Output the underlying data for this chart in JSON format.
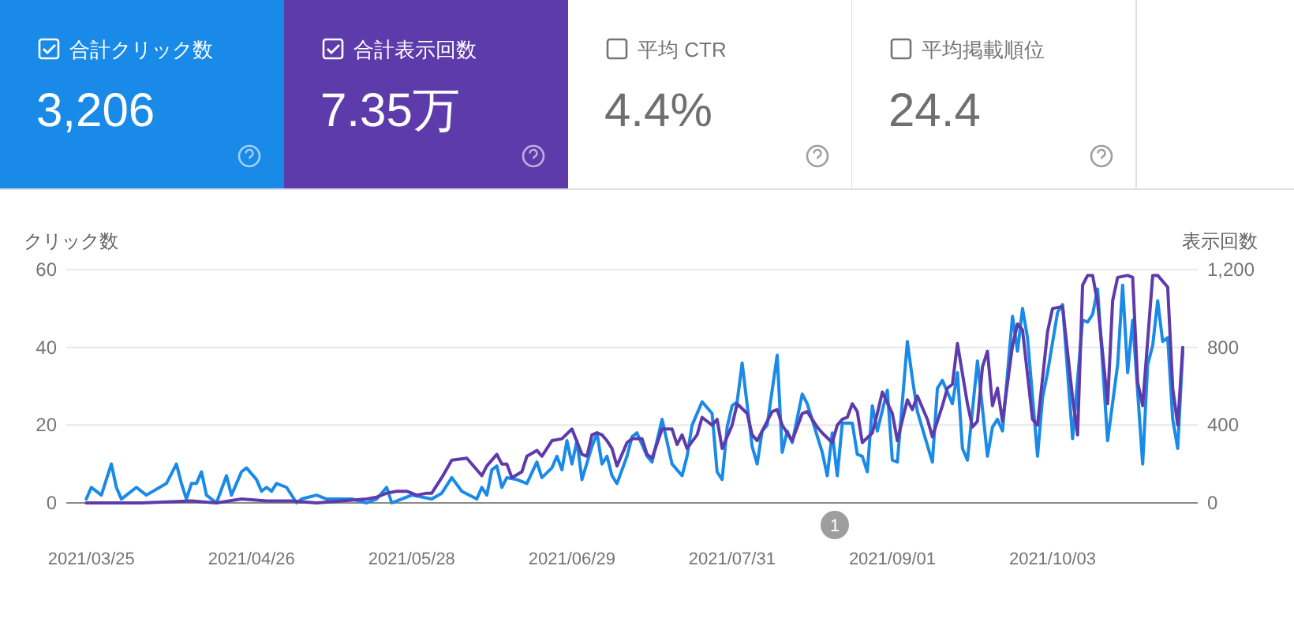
{
  "chart_data": [
    {
      "type": "other",
      "annotations": [
        "合計クリック数",
        "3,206",
        "合計表示回数",
        "7.35万",
        "平均 CTR",
        "4.4%",
        "平均掲載順位",
        "24.4"
      ],
      "colors": [
        "#1a8ae8",
        "#5e3bab",
        null,
        null
      ]
    },
    {
      "type": "line",
      "ylabel": "クリック数",
      "y2label": "表示回数",
      "xlim": [
        "2021-03-20",
        "2021-11-01"
      ],
      "xticks": [
        {
          "value": "2021-03-25",
          "label": "2021/03/25"
        },
        {
          "value": "2021-04-26",
          "label": "2021/04/26"
        },
        {
          "value": "2021-05-28",
          "label": "2021/05/28"
        },
        {
          "value": "2021-06-29",
          "label": "2021/06/29"
        },
        {
          "value": "2021-07-31",
          "label": "2021/07/31"
        },
        {
          "value": "2021-09-01",
          "label": "2021/09/01"
        },
        {
          "value": "2021-10-03",
          "label": "2021/10/03"
        }
      ],
      "ylim": [
        0,
        60
      ],
      "yticks": [
        0,
        20,
        40,
        60
      ],
      "y2lim": [
        0,
        1200
      ],
      "y2ticks": [
        0,
        400,
        800,
        {
          "value": 1200,
          "label": "1,200"
        }
      ],
      "grid": "y",
      "annotations": [
        "1"
      ],
      "series": [
        {
          "color": "#1a8ae8",
          "x": [
            "2021-03-24",
            "2021-03-25",
            "2021-03-27",
            "2021-03-29",
            "2021-03-30",
            "2021-03-31",
            "2021-04-03",
            "2021-04-05",
            "2021-04-09",
            "2021-04-11",
            "2021-04-12",
            "2021-04-13",
            "2021-04-14",
            "2021-04-15",
            "2021-04-16",
            "2021-04-17",
            "2021-04-19",
            "2021-04-21",
            "2021-04-22",
            "2021-04-24",
            "2021-04-25",
            "2021-04-27",
            "2021-04-28",
            "2021-04-29",
            "2021-04-30",
            "2021-05-01",
            "2021-05-03",
            "2021-05-05",
            "2021-05-06",
            "2021-05-09",
            "2021-05-11",
            "2021-05-16",
            "2021-05-19",
            "2021-05-21",
            "2021-05-23",
            "2021-05-24",
            "2021-05-28",
            "2021-06-01",
            "2021-06-03",
            "2021-06-05",
            "2021-06-07",
            "2021-06-10",
            "2021-06-11",
            "2021-06-12",
            "2021-06-13",
            "2021-06-14",
            "2021-06-15",
            "2021-06-16",
            "2021-06-18",
            "2021-06-20",
            "2021-06-22",
            "2021-06-23",
            "2021-06-25",
            "2021-06-26",
            "2021-06-27",
            "2021-06-28",
            "2021-06-29",
            "2021-06-30",
            "2021-07-01",
            "2021-07-03",
            "2021-07-04",
            "2021-07-05",
            "2021-07-06",
            "2021-07-07",
            "2021-07-08",
            "2021-07-10",
            "2021-07-11",
            "2021-07-12",
            "2021-07-14",
            "2021-07-15",
            "2021-07-17",
            "2021-07-19",
            "2021-07-21",
            "2021-07-22",
            "2021-07-23",
            "2021-07-25",
            "2021-07-27",
            "2021-07-28",
            "2021-07-29",
            "2021-07-30",
            "2021-07-31",
            "2021-08-01",
            "2021-08-02",
            "2021-08-04",
            "2021-08-05",
            "2021-08-06",
            "2021-08-07",
            "2021-08-09",
            "2021-08-10",
            "2021-08-11",
            "2021-08-12",
            "2021-08-14",
            "2021-08-15",
            "2021-08-18",
            "2021-08-19",
            "2021-08-20",
            "2021-08-21",
            "2021-08-22",
            "2021-08-24",
            "2021-08-25",
            "2021-08-26",
            "2021-08-27",
            "2021-08-28",
            "2021-08-29",
            "2021-08-31",
            "2021-09-01",
            "2021-09-02",
            "2021-09-04",
            "2021-09-05",
            "2021-09-06",
            "2021-09-09",
            "2021-09-10",
            "2021-09-11",
            "2021-09-13",
            "2021-09-14",
            "2021-09-15",
            "2021-09-16",
            "2021-09-18",
            "2021-09-20",
            "2021-09-21",
            "2021-09-22",
            "2021-09-23",
            "2021-09-25",
            "2021-09-26",
            "2021-09-27",
            "2021-09-28",
            "2021-09-30",
            "2021-10-01",
            "2021-10-02",
            "2021-10-04",
            "2021-10-05",
            "2021-10-07",
            "2021-10-09",
            "2021-10-10",
            "2021-10-11",
            "2021-10-12",
            "2021-10-14",
            "2021-10-16",
            "2021-10-17",
            "2021-10-18",
            "2021-10-19",
            "2021-10-21",
            "2021-10-22",
            "2021-10-23",
            "2021-10-24",
            "2021-10-25",
            "2021-10-26",
            "2021-10-27",
            "2021-10-28",
            "2021-10-29"
          ],
          "values": [
            1,
            4,
            2,
            10,
            4,
            1,
            4,
            2,
            5,
            10,
            5,
            1,
            5,
            5,
            8,
            2,
            0,
            7,
            2,
            8,
            9,
            6,
            3,
            4,
            3,
            5,
            4,
            0,
            1,
            2,
            1,
            1,
            0,
            1,
            4,
            0,
            2,
            1,
            2.5,
            6.5,
            3,
            1,
            4,
            2,
            8.5,
            9.5,
            4,
            6.5,
            6,
            5,
            10.5,
            6.5,
            9,
            12,
            8.5,
            16,
            10,
            16,
            6,
            14.5,
            18,
            10,
            12,
            7,
            5,
            12,
            17,
            18,
            12,
            10.5,
            21.5,
            10,
            7,
            12,
            20,
            26,
            23,
            8,
            6,
            19.5,
            25,
            26,
            36,
            14.5,
            10,
            18.5,
            20,
            38,
            13,
            18.5,
            15.5,
            28,
            25.5,
            13,
            7,
            18,
            7,
            20.5,
            20.5,
            12.5,
            12,
            8,
            25,
            18.5,
            29,
            11,
            10.5,
            41.5,
            32,
            23.5,
            10.5,
            29.5,
            31.5,
            25.5,
            33.5,
            14,
            11,
            36.5,
            12,
            19.5,
            21.5,
            18.5,
            48,
            39,
            50,
            42.5,
            12,
            27,
            33.5,
            49,
            51,
            16.5,
            47,
            46.5,
            48.5,
            55,
            16,
            35.5,
            56,
            33.5,
            47,
            10,
            35.5,
            40.5,
            52,
            41.5,
            42.5,
            21.5,
            14,
            39
          ]
        },
        {
          "color": "#5e3bab",
          "axis": "y2",
          "x": [
            "2021-03-24",
            "2021-03-29",
            "2021-04-04",
            "2021-04-14",
            "2021-04-19",
            "2021-04-24",
            "2021-04-29",
            "2021-05-04",
            "2021-05-09",
            "2021-05-14",
            "2021-05-19",
            "2021-05-21",
            "2021-05-23",
            "2021-05-25",
            "2021-05-27",
            "2021-05-29",
            "2021-05-31",
            "2021-06-01",
            "2021-06-03",
            "2021-06-05",
            "2021-06-08",
            "2021-06-10",
            "2021-06-11",
            "2021-06-12",
            "2021-06-14",
            "2021-06-15",
            "2021-06-16",
            "2021-06-17",
            "2021-06-19",
            "2021-06-20",
            "2021-06-22",
            "2021-06-23",
            "2021-06-25",
            "2021-06-27",
            "2021-06-29",
            "2021-07-01",
            "2021-07-02",
            "2021-07-03",
            "2021-07-04",
            "2021-07-05",
            "2021-07-06",
            "2021-07-07",
            "2021-07-08",
            "2021-07-10",
            "2021-07-11",
            "2021-07-13",
            "2021-07-14",
            "2021-07-15",
            "2021-07-17",
            "2021-07-19",
            "2021-07-20",
            "2021-07-21",
            "2021-07-22",
            "2021-07-24",
            "2021-07-25",
            "2021-07-27",
            "2021-07-28",
            "2021-07-29",
            "2021-07-31",
            "2021-08-01",
            "2021-08-03",
            "2021-08-04",
            "2021-08-05",
            "2021-08-07",
            "2021-08-08",
            "2021-08-09",
            "2021-08-10",
            "2021-08-12",
            "2021-08-14",
            "2021-08-15",
            "2021-08-17",
            "2021-08-18",
            "2021-08-20",
            "2021-08-21",
            "2021-08-22",
            "2021-08-23",
            "2021-08-24",
            "2021-08-25",
            "2021-08-26",
            "2021-08-28",
            "2021-08-29",
            "2021-08-30",
            "2021-09-01",
            "2021-09-02",
            "2021-09-04",
            "2021-09-05",
            "2021-09-06",
            "2021-09-08",
            "2021-09-09",
            "2021-09-11",
            "2021-09-12",
            "2021-09-13",
            "2021-09-14",
            "2021-09-16",
            "2021-09-17",
            "2021-09-18",
            "2021-09-19",
            "2021-09-20",
            "2021-09-21",
            "2021-09-22",
            "2021-09-23",
            "2021-09-25",
            "2021-09-26",
            "2021-09-27",
            "2021-09-29",
            "2021-09-30",
            "2021-10-02",
            "2021-10-03",
            "2021-10-05",
            "2021-10-07",
            "2021-10-08",
            "2021-10-09",
            "2021-10-10",
            "2021-10-11",
            "2021-10-12",
            "2021-10-14",
            "2021-10-15",
            "2021-10-16",
            "2021-10-18",
            "2021-10-19",
            "2021-10-20",
            "2021-10-21",
            "2021-10-23",
            "2021-10-24",
            "2021-10-26",
            "2021-10-27",
            "2021-10-28",
            "2021-10-29"
          ],
          "values": [
            0,
            0,
            0,
            10,
            0,
            20,
            10,
            10,
            0,
            10,
            20,
            30,
            50,
            60,
            60,
            40,
            50,
            50,
            130,
            220,
            230,
            170,
            140,
            190,
            250,
            200,
            200,
            130,
            160,
            240,
            270,
            240,
            320,
            330,
            380,
            250,
            240,
            350,
            360,
            350,
            320,
            280,
            190,
            310,
            330,
            330,
            250,
            230,
            380,
            380,
            300,
            350,
            280,
            350,
            440,
            400,
            430,
            280,
            400,
            510,
            460,
            350,
            320,
            420,
            470,
            480,
            400,
            320,
            460,
            470,
            390,
            360,
            310,
            400,
            430,
            440,
            510,
            470,
            310,
            360,
            460,
            570,
            460,
            320,
            530,
            480,
            550,
            430,
            340,
            500,
            590,
            610,
            820,
            510,
            390,
            420,
            700,
            780,
            500,
            590,
            420,
            810,
            920,
            890,
            430,
            400,
            880,
            1000,
            1010,
            540,
            350,
            1120,
            1170,
            1170,
            1030,
            510,
            1040,
            1160,
            1170,
            1160,
            620,
            500,
            1170,
            1170,
            1110,
            590,
            400,
            800
          ]
        }
      ]
    }
  ]
}
